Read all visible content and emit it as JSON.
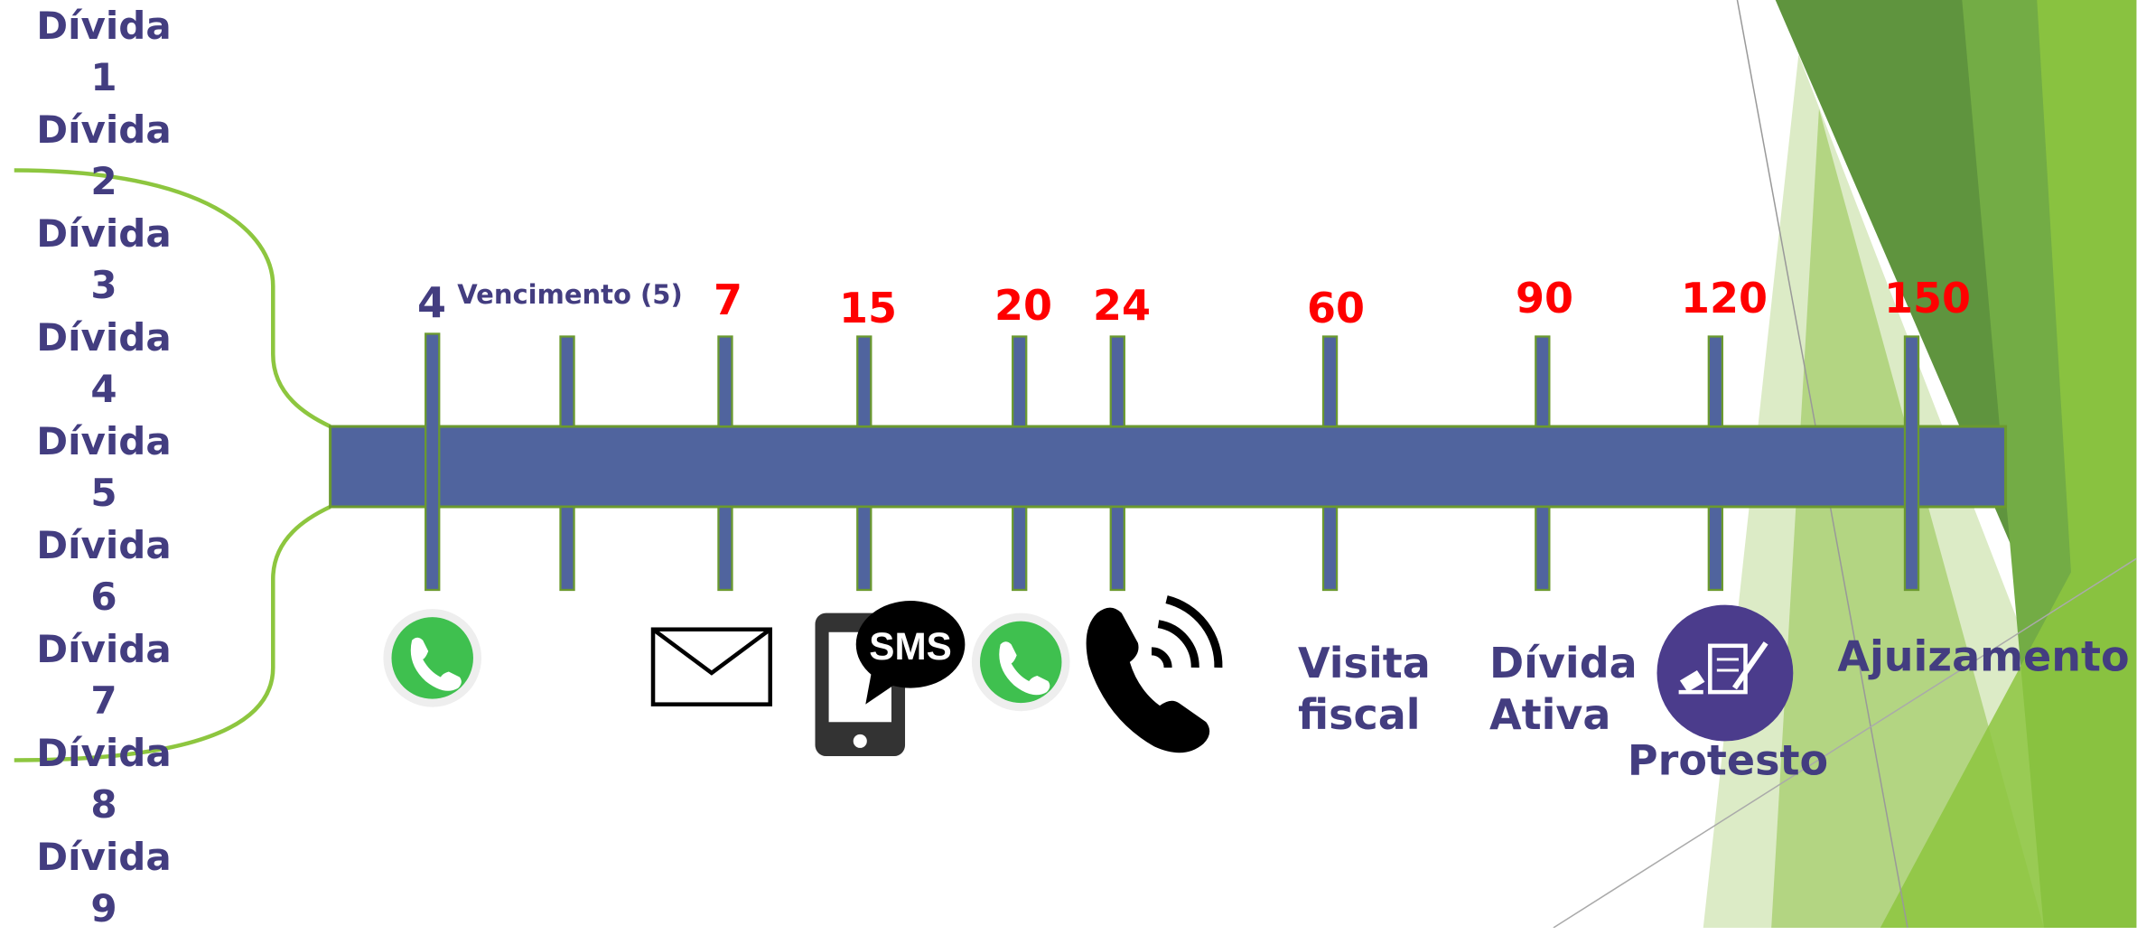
{
  "debts": [
    "Dívida 1",
    "Dívida 2",
    "Dívida 3",
    "Dívida 4",
    "Dívida 5",
    "Dívida 6",
    "Dívida 7",
    "Dívida 8",
    "Dívida 9"
  ],
  "timeline": {
    "ticks": [
      "4",
      "Vencimento (5)",
      "7",
      "15",
      "20",
      "24",
      "60",
      "90",
      "120",
      "150"
    ],
    "stages": [
      "Visita fiscal",
      "Dívida Ativa",
      "Protesto",
      "Ajuizamento"
    ],
    "sms_icon": "SMS"
  }
}
